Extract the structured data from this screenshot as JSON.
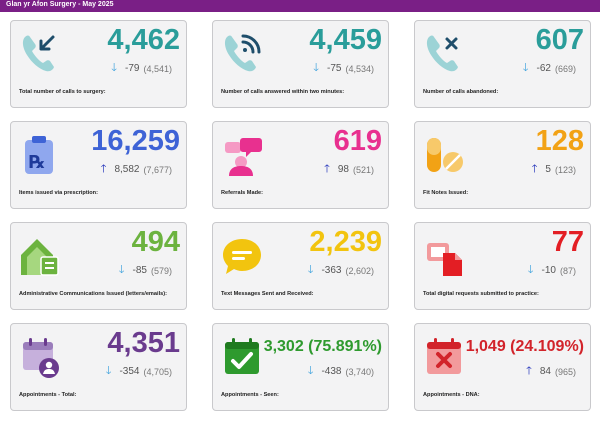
{
  "header": {
    "title": "Glan yr Afon Surgery - May 2025"
  },
  "cards": [
    {
      "value": "4,462",
      "change": "-79",
      "prev": "(4,541)",
      "direction": "down",
      "label": "Total number of calls to surgery:",
      "color": "#2a9d9a",
      "icon": "phone-incoming-icon"
    },
    {
      "value": "4,459",
      "change": "-75",
      "prev": "(4,534)",
      "direction": "down",
      "label": "Number of calls answered within two minutes:",
      "color": "#2a9d9a",
      "icon": "phone-ringing-icon"
    },
    {
      "value": "607",
      "change": "-62",
      "prev": "(669)",
      "direction": "down",
      "label": "Number of calls abandoned:",
      "color": "#2a9d9a",
      "icon": "phone-missed-icon"
    },
    {
      "value": "16,259",
      "change": "8,582",
      "prev": "(7,677)",
      "direction": "up",
      "label": "Items issued via prescription:",
      "color": "#3e63d6",
      "icon": "prescription-icon"
    },
    {
      "value": "619",
      "change": "98",
      "prev": "(521)",
      "direction": "up",
      "label": "Referrals Made:",
      "color": "#e8308f",
      "icon": "doctor-chat-icon"
    },
    {
      "value": "128",
      "change": "5",
      "prev": "(123)",
      "direction": "up",
      "label": "Fit Notes Issued:",
      "color": "#f2a215",
      "icon": "pills-icon"
    },
    {
      "value": "494",
      "change": "-85",
      "prev": "(579)",
      "direction": "down",
      "label": "Administrative Communications Issued (letters/emails):",
      "color": "#6cb33f",
      "icon": "house-letter-icon"
    },
    {
      "value": "2,239",
      "change": "-363",
      "prev": "(2,602)",
      "direction": "down",
      "label": "Text Messages Sent and Received:",
      "color": "#f2c40f",
      "icon": "speech-bubble-icon"
    },
    {
      "value": "77",
      "change": "-10",
      "prev": "(87)",
      "direction": "down",
      "label": "Total digital requests submitted to practice:",
      "color": "#e31e24",
      "icon": "digital-request-icon"
    },
    {
      "value": "4,351",
      "change": "-354",
      "prev": "(4,705)",
      "direction": "down",
      "label": "Appointments - Total:",
      "color": "#6a3b8e",
      "icon": "calendar-person-icon"
    },
    {
      "value": "3,302 (75.891%)",
      "change": "-438",
      "prev": "(3,740)",
      "direction": "down",
      "label": "Appointments - Seen:",
      "color": "#2e9a2e",
      "icon": "calendar-check-icon"
    },
    {
      "value": "1,049 (24.109%)",
      "change": "84",
      "prev": "(965)",
      "direction": "up",
      "label": "Appointments - DNA:",
      "color": "#d2232a",
      "icon": "calendar-x-icon"
    }
  ]
}
